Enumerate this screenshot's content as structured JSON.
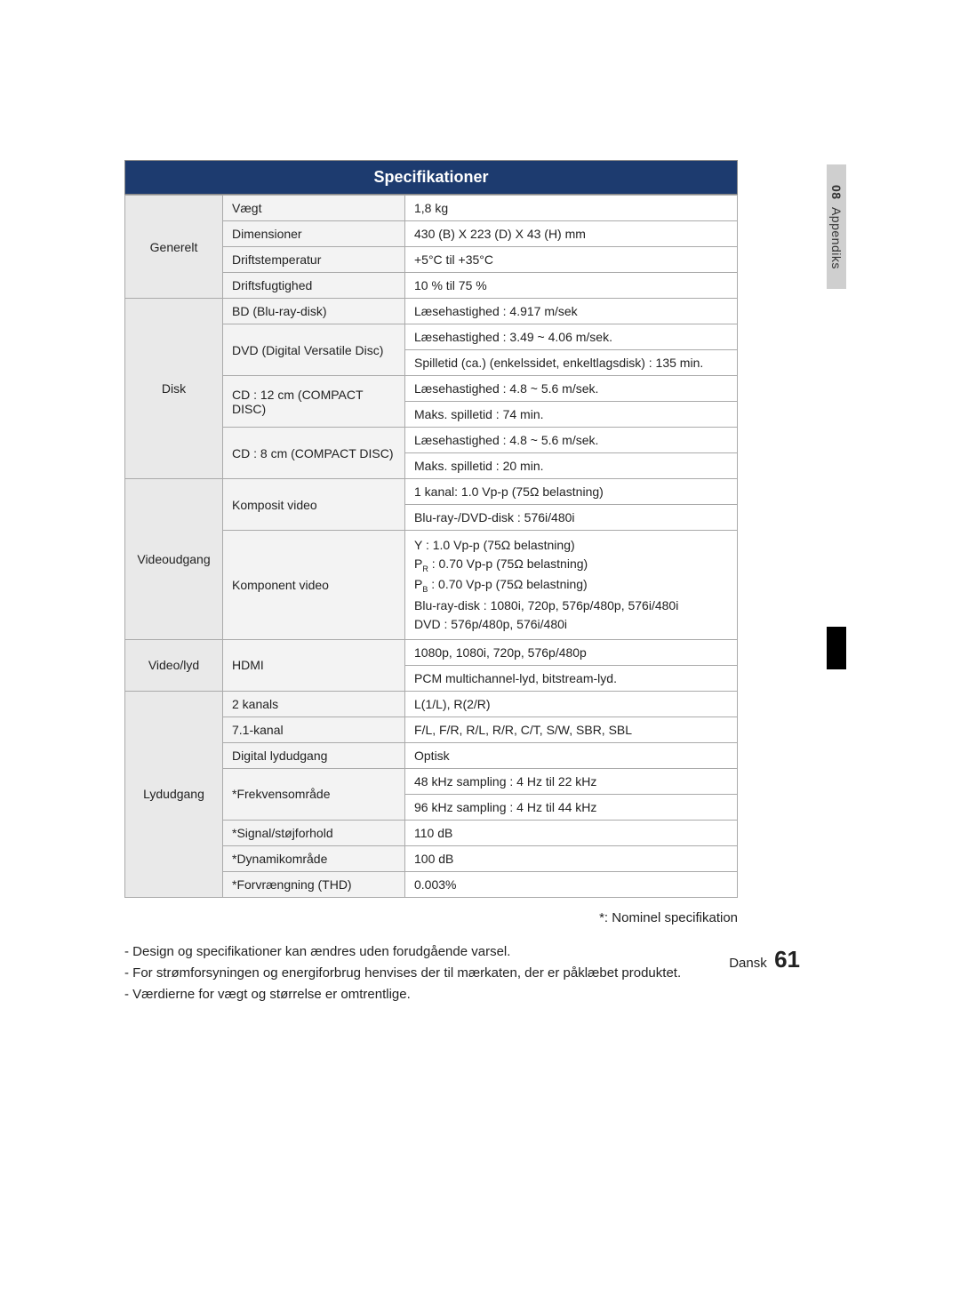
{
  "header_title": "Specifikationer",
  "side_tab": {
    "number": "08",
    "label": "Appendiks"
  },
  "colors": {
    "header_bg": "#1d3b6f",
    "header_text": "#ffffff",
    "cat_bg": "#e9e9e9",
    "sub_bg": "#f3f3f3",
    "border": "#aaaaaa",
    "sidetab_bg": "#cfcfcf"
  },
  "sections": {
    "generelt": {
      "label": "Generelt",
      "rows": [
        {
          "sub": "Vægt",
          "val": "1,8 kg"
        },
        {
          "sub": "Dimensioner",
          "val": "430 (B) X 223 (D) X 43 (H) mm"
        },
        {
          "sub": "Driftstemperatur",
          "val": "+5°C til +35°C"
        },
        {
          "sub": "Driftsfugtighed",
          "val": "10 % til 75 %"
        }
      ]
    },
    "disk": {
      "label": "Disk",
      "bd_sub": "BD (Blu-ray-disk)",
      "bd_val": "Læsehastighed : 4.917 m/sek",
      "dvd_sub": "DVD (Digital Versatile Disc)",
      "dvd_v1": "Læsehastighed : 3.49 ~ 4.06 m/sek.",
      "dvd_v2": "Spilletid (ca.) (enkelssidet, enkeltlagsdisk) : 135 min.",
      "cd12_sub": "CD : 12 cm (COMPACT DISC)",
      "cd12_v1": "Læsehastighed : 4.8 ~ 5.6 m/sek.",
      "cd12_v2": "Maks. spilletid : 74 min.",
      "cd8_sub": "CD : 8 cm (COMPACT DISC)",
      "cd8_v1": "Læsehastighed : 4.8 ~ 5.6 m/sek.",
      "cd8_v2": "Maks. spilletid : 20 min."
    },
    "videoudgang": {
      "label": "Videoudgang",
      "komposit_sub": "Komposit video",
      "komposit_v1": "1 kanal: 1.0 Vp-p (75Ω belastning)",
      "komposit_v2": "Blu-ray-/DVD-disk : 576i/480i",
      "komponent_sub": "Komponent video",
      "komponent_l1": "Y : 1.0 Vp-p (75Ω belastning)",
      "komponent_l2a": "P",
      "komponent_l2b": "R",
      "komponent_l2c": " : 0.70 Vp-p (75Ω belastning)",
      "komponent_l3a": "P",
      "komponent_l3b": "B",
      "komponent_l3c": " : 0.70 Vp-p (75Ω belastning)",
      "komponent_l4": "Blu-ray-disk : 1080i, 720p, 576p/480p, 576i/480i",
      "komponent_l5": "DVD : 576p/480p, 576i/480i"
    },
    "videolyd": {
      "label": "Video/lyd",
      "hdmi_sub": "HDMI",
      "hdmi_v1": "1080p, 1080i, 720p, 576p/480p",
      "hdmi_v2": "PCM multichannel-lyd, bitstream-lyd."
    },
    "lydudgang": {
      "label": "Lydudgang",
      "ch2_sub": "2 kanals",
      "ch2_val": "L(1/L), R(2/R)",
      "ch71_sub": "7.1-kanal",
      "ch71_val": "F/L, F/R, R/L, R/R, C/T, S/W, SBR, SBL",
      "dig_sub": "Digital lydudgang",
      "dig_val": "Optisk",
      "freq_sub": "*Frekvensområde",
      "freq_v1": "48 kHz sampling : 4 Hz til 22 kHz",
      "freq_v2": "96 kHz sampling : 4 Hz til 44 kHz",
      "snr_sub": "*Signal/støjforhold",
      "snr_val": "110 dB",
      "dyn_sub": "*Dynamikområde",
      "dyn_val": "100 dB",
      "thd_sub": "*Forvrængning (THD)",
      "thd_val": "0.003%"
    }
  },
  "footnote_right": "*: Nominel specifikation",
  "notes": [
    "-  Design og specifikationer kan ændres uden forudgående varsel.",
    "-  For strømforsyningen og energiforbrug henvises der til mærkaten, der er påklæbet produktet.",
    "-  Værdierne for vægt og størrelse er omtrentlige."
  ],
  "page_footer": {
    "lang": "Dansk",
    "num": "61"
  }
}
